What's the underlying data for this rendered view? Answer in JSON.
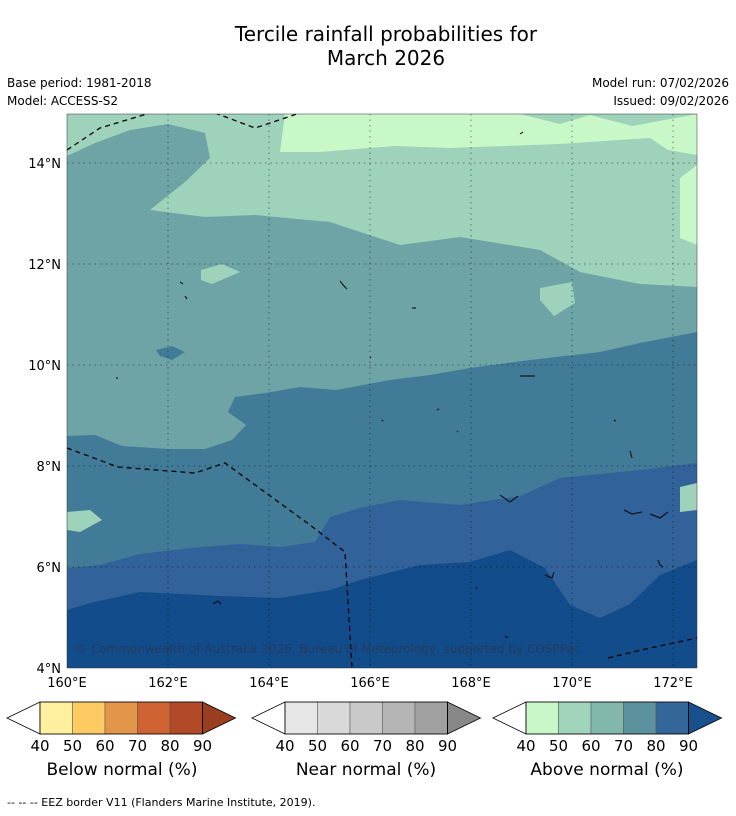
{
  "title_line1": "Tercile rainfall probabilities for",
  "title_line2": "March 2026",
  "base_period": "Base period: 1981-2018",
  "model": "Model: ACCESS-S2",
  "model_run": "Model run: 07/02/2026",
  "issued": "Issued: 09/02/2026",
  "copyright": "© Commonwealth of Australia 2026, Bureau of Meteorology, supported by COSPPac",
  "lat_labels": [
    "14°N",
    "12°N",
    "10°N",
    "8°N",
    "6°N",
    "4°N"
  ],
  "lon_labels": [
    "160°E",
    "162°E",
    "164°E",
    "166°E",
    "168°E",
    "170°E",
    "172°E"
  ],
  "legends": [
    {
      "title": "Below normal (%)",
      "ticks": [
        "40",
        "50",
        "60",
        "70",
        "80",
        "90"
      ],
      "colors": [
        "#ffffff",
        "#fff0a0",
        "#fecb63",
        "#e3964a",
        "#cf6232",
        "#b24a27",
        "#993e1f"
      ]
    },
    {
      "title": "Near normal (%)",
      "ticks": [
        "40",
        "50",
        "60",
        "70",
        "80",
        "90"
      ],
      "colors": [
        "#ffffff",
        "#e6e6e6",
        "#d9d9d9",
        "#c9c9c9",
        "#b5b5b5",
        "#a0a0a0",
        "#888888"
      ]
    },
    {
      "title": "Above normal (%)",
      "ticks": [
        "40",
        "50",
        "60",
        "70",
        "80",
        "90"
      ],
      "colors": [
        "#ffffff",
        "#c8f7c8",
        "#a0d4bb",
        "#82b8ab",
        "#5b929e",
        "#34669a",
        "#17508d"
      ]
    }
  ],
  "map_colors": {
    "c50": "#c8f7c8",
    "c60": "#9ed2bb",
    "c70": "#6ea4a6",
    "c75": "#427b98",
    "c80": "#32629a",
    "c90": "#134c8a"
  },
  "footer": "--  --  -- EEZ border V11 (Flanders Marine Institute, 2019)."
}
